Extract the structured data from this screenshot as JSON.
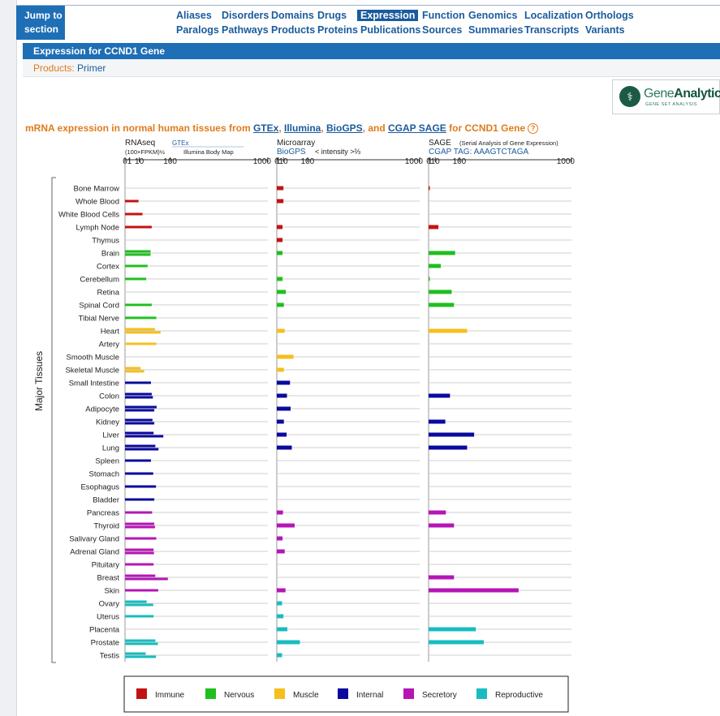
{
  "nav": {
    "jump_line1": "Jump to",
    "jump_line2": "section",
    "row1": [
      "Aliases",
      "Disorders",
      "Domains",
      "Drugs",
      "Expression",
      "Function",
      "Genomics",
      "Localization",
      "Orthologs"
    ],
    "row2": [
      "Paralogs",
      "Pathways",
      "Products",
      "Proteins",
      "Publications",
      "Sources",
      "Summaries",
      "Transcripts",
      "Variants"
    ],
    "active": "Expression"
  },
  "section_title": "Expression for CCND1 Gene",
  "products": {
    "label": "Products:",
    "value": "Primer"
  },
  "logo": {
    "name_light": "Gene",
    "name_bold": "Analytics",
    "tagline": "GENE SET ANALYSIS"
  },
  "chart_title": {
    "prefix": "mRNA expression in normal human tissues from",
    "sources": [
      "GTEx",
      "Illumina",
      "BioGPS",
      "CGAP SAGE"
    ],
    "suffix": "for CCND1 Gene",
    "help": "?"
  },
  "colors": {
    "Immune": "#c21313",
    "Nervous": "#1fbf1f",
    "Muscle": "#f6bf1e",
    "Internal": "#0a0a9e",
    "Secretory": "#b615b6",
    "Reproductive": "#18bcc0"
  },
  "chart_data": {
    "type": "bar",
    "title": "mRNA expression in normal human tissues from GTEx, Illumina, BioGPS, and CGAP SAGE for CCND1 Gene",
    "ylabel": "Major Tissues",
    "legend_position": "bottom",
    "legend": [
      "Immune",
      "Nervous",
      "Muscle",
      "Internal",
      "Secretory",
      "Reproductive"
    ],
    "panels": [
      {
        "title": "RNAseq",
        "unit": "(100×FPKM)½",
        "sources": [
          "GTEx",
          "Illumina Body Map"
        ],
        "scale": "sqrt",
        "ticks": [
          0,
          1,
          10,
          100,
          1000
        ],
        "xlim": [
          0,
          1000
        ]
      },
      {
        "title": "Microarray",
        "source": "BioGPS",
        "unit": "< intensity >⅔",
        "scale": "pow2/3",
        "ticks": [
          0,
          1,
          10,
          100,
          1000
        ],
        "xlim": [
          0,
          1000
        ]
      },
      {
        "title": "SAGE",
        "subtitle": "(Serial Analysis of Gene Expression)",
        "tag": "CGAP TAG: AAAGTCTAGA",
        "scale": "pow2/3",
        "ticks": [
          0,
          1,
          10,
          100,
          1000
        ],
        "xlim": [
          0,
          1000
        ]
      }
    ],
    "tissues": [
      {
        "name": "Bone Marrow",
        "group": "Immune",
        "rnaseq": [],
        "microarray": 10,
        "sage": 0.1
      },
      {
        "name": "Whole Blood",
        "group": "Immune",
        "rnaseq": [
          9
        ],
        "microarray": 10,
        "sage": null
      },
      {
        "name": "White Blood Cells",
        "group": "Immune",
        "rnaseq": [
          15
        ],
        "microarray": null,
        "sage": null
      },
      {
        "name": "Lymph Node",
        "group": "Immune",
        "rnaseq": [
          35
        ],
        "microarray": 8,
        "sage": 18
      },
      {
        "name": "Thymus",
        "group": "Immune",
        "rnaseq": [],
        "microarray": 8,
        "sage": null
      },
      {
        "name": "Brain",
        "group": "Nervous",
        "rnaseq": [
          32,
          32
        ],
        "microarray": 8,
        "sage": 80
      },
      {
        "name": "Cortex",
        "group": "Nervous",
        "rnaseq": [
          25
        ],
        "microarray": null,
        "sage": 25
      },
      {
        "name": "Cerebellum",
        "group": "Nervous",
        "rnaseq": [
          22
        ],
        "microarray": 8,
        "sage": 0.1
      },
      {
        "name": "Retina",
        "group": "Nervous",
        "rnaseq": [],
        "microarray": 16,
        "sage": 65
      },
      {
        "name": "Spinal Cord",
        "group": "Nervous",
        "rnaseq": [
          35
        ],
        "microarray": 11,
        "sage": 75
      },
      {
        "name": "Tibial Nerve",
        "group": "Nervous",
        "rnaseq": [
          48
        ],
        "microarray": null,
        "sage": null
      },
      {
        "name": "Heart",
        "group": "Muscle",
        "rnaseq": [
          44,
          62
        ],
        "microarray": 13,
        "sage": 140
      },
      {
        "name": "Artery",
        "group": "Muscle",
        "rnaseq": [
          48
        ],
        "microarray": null,
        "sage": null
      },
      {
        "name": "Smooth Muscle",
        "group": "Muscle",
        "rnaseq": [],
        "microarray": 40,
        "sage": null
      },
      {
        "name": "Skeletal Muscle",
        "group": "Muscle",
        "rnaseq": [
          12,
          18
        ],
        "microarray": 11,
        "sage": null
      },
      {
        "name": "Small Intestine",
        "group": "Internal",
        "rnaseq": [
          33
        ],
        "microarray": 28,
        "sage": null
      },
      {
        "name": "Colon",
        "group": "Internal",
        "rnaseq": [
          35,
          38
        ],
        "microarray": 19,
        "sage": 58
      },
      {
        "name": "Adipocyte",
        "group": "Internal",
        "rnaseq": [
          49,
          42
        ],
        "microarray": 30,
        "sage": null
      },
      {
        "name": "Kidney",
        "group": "Internal",
        "rnaseq": [
          37,
          42
        ],
        "microarray": 11,
        "sage": 40
      },
      {
        "name": "Liver",
        "group": "Internal",
        "rnaseq": [
          40,
          72
        ],
        "microarray": 18,
        "sage": 180
      },
      {
        "name": "Lung",
        "group": "Internal",
        "rnaseq": [
          45,
          55
        ],
        "microarray": 34,
        "sage": 140
      },
      {
        "name": "Spleen",
        "group": "Internal",
        "rnaseq": [
          33
        ],
        "microarray": null,
        "sage": null
      },
      {
        "name": "Stomach",
        "group": "Internal",
        "rnaseq": [
          39
        ],
        "microarray": null,
        "sage": null
      },
      {
        "name": "Esophagus",
        "group": "Internal",
        "rnaseq": [
          47
        ],
        "microarray": null,
        "sage": null
      },
      {
        "name": "Bladder",
        "group": "Internal",
        "rnaseq": [
          42
        ],
        "microarray": null,
        "sage": null
      },
      {
        "name": "Pancreas",
        "group": "Secretory",
        "rnaseq": [
          36
        ],
        "microarray": 9,
        "sage": 42
      },
      {
        "name": "Thyroid",
        "group": "Secretory",
        "rnaseq": [
          42,
          44
        ],
        "microarray": 44,
        "sage": 75
      },
      {
        "name": "Salivary Gland",
        "group": "Secretory",
        "rnaseq": [
          48
        ],
        "microarray": 8,
        "sage": null
      },
      {
        "name": "Adrenal Gland",
        "group": "Secretory",
        "rnaseq": [
          40,
          41
        ],
        "microarray": 13,
        "sage": null
      },
      {
        "name": "Pituitary",
        "group": "Secretory",
        "rnaseq": [
          40
        ],
        "microarray": null,
        "sage": null
      },
      {
        "name": "Breast",
        "group": "Secretory",
        "rnaseq": [
          45,
          90
        ],
        "microarray": null,
        "sage": 75
      },
      {
        "name": "Skin",
        "group": "Secretory",
        "rnaseq": [
          54
        ],
        "microarray": 15,
        "sage": 500
      },
      {
        "name": "Ovary",
        "group": "Reproductive",
        "rnaseq": [
          23,
          39
        ],
        "microarray": 7,
        "sage": null
      },
      {
        "name": "Uterus",
        "group": "Reproductive",
        "rnaseq": [
          40
        ],
        "microarray": 10,
        "sage": null
      },
      {
        "name": "Placenta",
        "group": "Reproductive",
        "rnaseq": [],
        "microarray": 20,
        "sage": 190
      },
      {
        "name": "Prostate",
        "group": "Reproductive",
        "rnaseq": [
          45,
          53
        ],
        "microarray": 65,
        "sage": 240
      },
      {
        "name": "Testis",
        "group": "Reproductive",
        "rnaseq": [
          21,
          47
        ],
        "microarray": 7,
        "sage": null
      }
    ]
  }
}
